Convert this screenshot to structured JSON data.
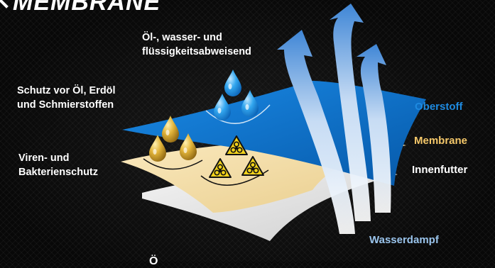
{
  "title": "MEMBRANE",
  "callouts": {
    "repellent": [
      "Öl-, wasser- und",
      "flüssigkeitsabweisend"
    ],
    "oil_protection": [
      "Schutz vor Öl, Erdöl",
      "und Schmierstoffen"
    ],
    "virus_protection": [
      "Viren- und",
      "Bakterienschutz"
    ]
  },
  "layers": {
    "outer": "Oberstoff",
    "membrane": "Membrane",
    "lining": "Innenfutter"
  },
  "vapor_label": "Wasserdampf",
  "bottom_fragment": "Ö",
  "colors": {
    "outer": "#0a74cc",
    "membrane": "#f5e1ad",
    "lining": "#e6e6e6",
    "water_drop": "#2a9ee8",
    "oil_drop": "#d9a82a",
    "vapor_arrow": "#4d8fd6",
    "outer_label": "#1e8ae0",
    "membrane_label": "#f5c86a",
    "lining_label": "#ffffff",
    "vapor_label": "#9ac4ec"
  },
  "icons": [
    "water-drop-icon",
    "oil-drop-icon",
    "biohazard-icon",
    "vapor-arrow-icon",
    "back-arrow-icon"
  ]
}
